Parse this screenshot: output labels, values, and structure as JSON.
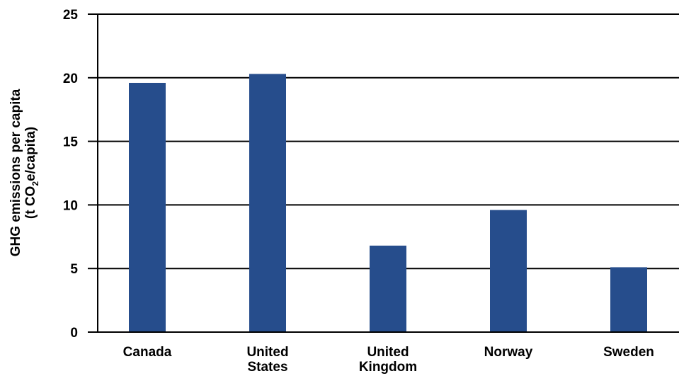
{
  "chart_data": {
    "type": "bar",
    "categories": [
      "Canada",
      "United States",
      "United Kingdom",
      "Norway",
      "Sweden"
    ],
    "category_lines": [
      [
        "Canada"
      ],
      [
        "United",
        "States"
      ],
      [
        "United",
        "Kingdom"
      ],
      [
        "Norway"
      ],
      [
        "Sweden"
      ]
    ],
    "values": [
      19.6,
      20.3,
      6.8,
      9.6,
      5.1
    ],
    "title": "",
    "xlabel": "",
    "ylabel_line1": "GHG emissions per capita",
    "ylabel_line2_pre": "(t CO",
    "ylabel_line2_sub": "2",
    "ylabel_line2_post": "e/capita)",
    "ylim": [
      0,
      25
    ],
    "yticks": [
      0,
      5,
      10,
      15,
      20,
      25
    ],
    "grid": true,
    "bar_color": "#264D8C"
  }
}
